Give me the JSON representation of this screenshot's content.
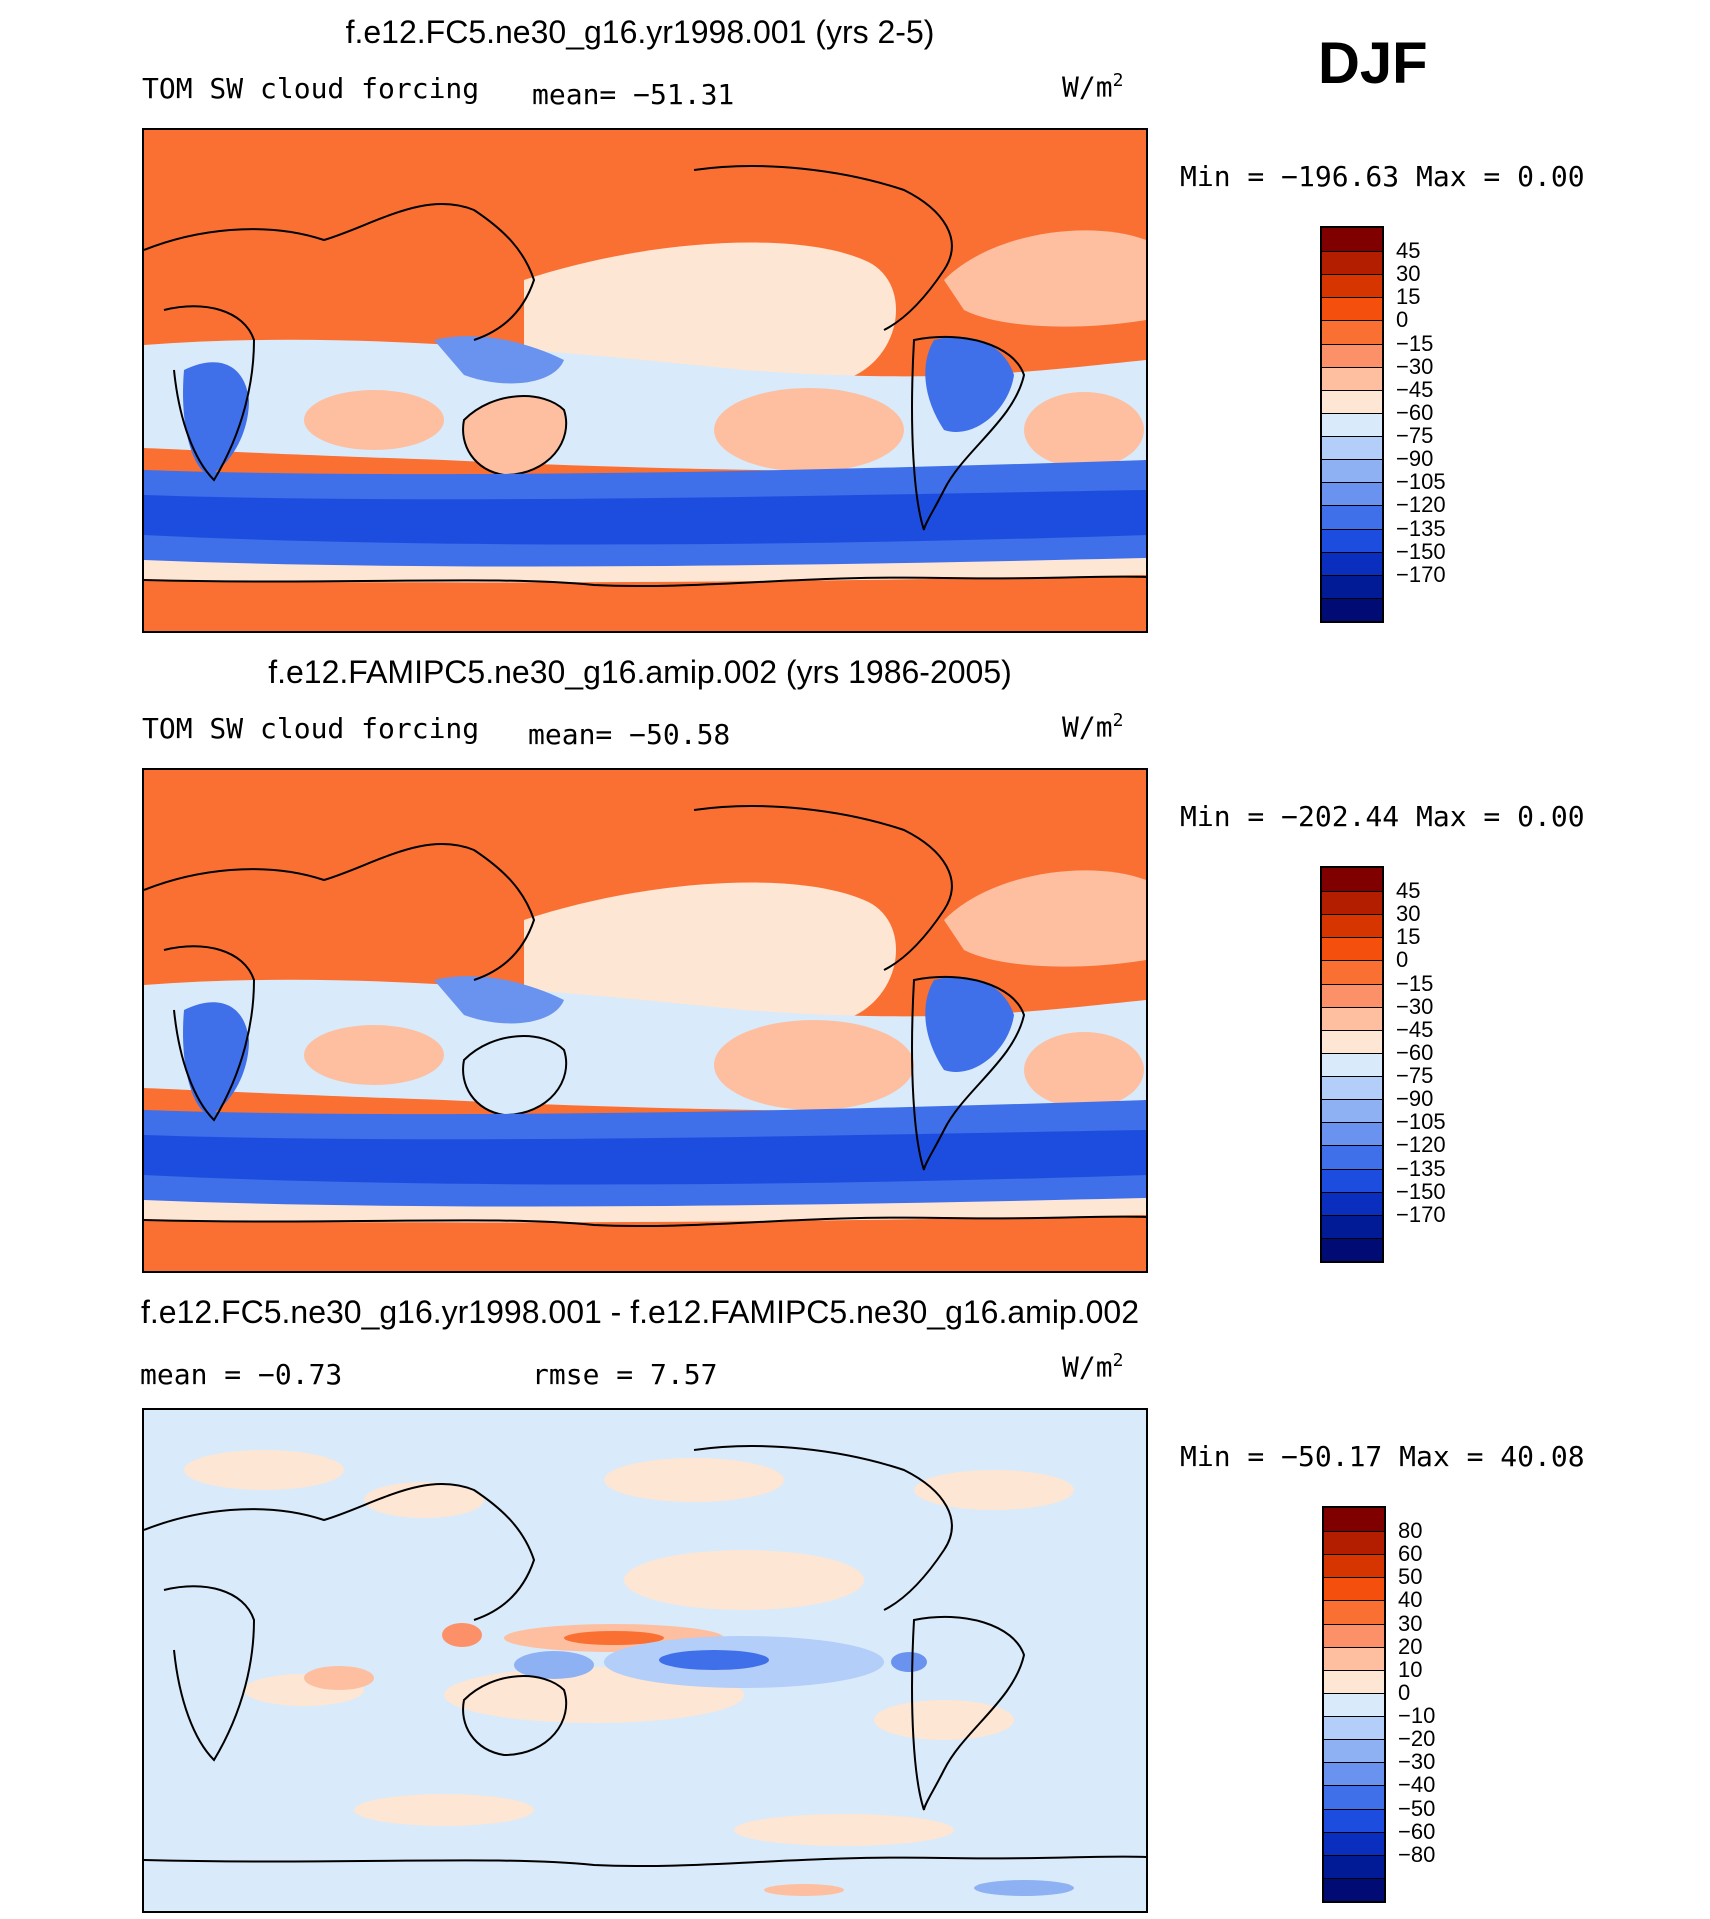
{
  "figure": {
    "season": "DJF",
    "legend_colors": {
      "abs": [
        "#800000",
        "#b41e00",
        "#d73500",
        "#f54f0e",
        "#fa7033",
        "#fc9068",
        "#fdbfa0",
        "#fde6d4",
        "#d9eafa",
        "#b3cef8",
        "#8eb1f4",
        "#6a92ef",
        "#3f6fe9",
        "#1d4ddf",
        "#0a2fbf",
        "#001b95",
        "#000c73"
      ],
      "diff": [
        "#800000",
        "#b41e00",
        "#d73500",
        "#f54f0e",
        "#fa7033",
        "#fc9068",
        "#fdbfa0",
        "#fde6d4",
        "#d9eafa",
        "#b3cef8",
        "#8eb1f4",
        "#6a92ef",
        "#3f6fe9",
        "#1d4ddf",
        "#0a2fbf",
        "#001b95",
        "#000c73"
      ]
    }
  },
  "panels": [
    {
      "title": "f.e12.FC5.ne30_g16.yr1998.001 (yrs 2-5)",
      "variable": "TOM SW cloud forcing",
      "mean_text": "mean= −51.31",
      "units": "W/m",
      "units_exp": "2",
      "minmax": "Min  =  −196.63  Max  =     0.00",
      "legend": [
        "45",
        "30",
        "15",
        "0",
        "−15",
        "−30",
        "−45",
        "−60",
        "−75",
        "−90",
        "−105",
        "−120",
        "−135",
        "−150",
        "−170"
      ]
    },
    {
      "title": "f.e12.FAMIPC5.ne30_g16.amip.002 (yrs 1986-2005)",
      "variable": "TOM SW cloud forcing",
      "mean_text": "mean= −50.58",
      "units": "W/m",
      "units_exp": "2",
      "minmax": "Min  =  −202.44  Max  =     0.00",
      "legend": [
        "45",
        "30",
        "15",
        "0",
        "−15",
        "−30",
        "−45",
        "−60",
        "−75",
        "−90",
        "−105",
        "−120",
        "−135",
        "−150",
        "−170"
      ]
    },
    {
      "title": "f.e12.FC5.ne30_g16.yr1998.001 - f.e12.FAMIPC5.ne30_g16.amip.002",
      "mean_text": "mean  =    −0.73",
      "rmse_text": "rmse  =     7.57",
      "units": "W/m",
      "units_exp": "2",
      "minmax": "Min  =  −50.17  Max  =   40.08",
      "legend": [
        "80",
        "60",
        "50",
        "40",
        "30",
        "20",
        "10",
        "0",
        "−10",
        "−20",
        "−30",
        "−40",
        "−50",
        "−60",
        "−80"
      ]
    }
  ]
}
